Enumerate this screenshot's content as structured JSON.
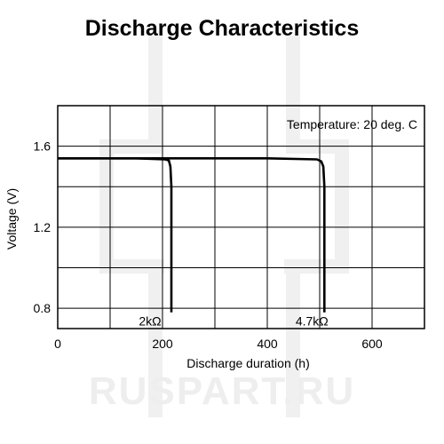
{
  "watermark": "RUSPART.RU",
  "chart_data": {
    "type": "line",
    "title": "Discharge Characteristics",
    "xlabel": "Discharge duration (h)",
    "ylabel": "Voltage (V)",
    "xlim": [
      0,
      700
    ],
    "ylim": [
      0.7,
      1.8
    ],
    "xticks": [
      0,
      200,
      400,
      600
    ],
    "xtick_labels": [
      "0",
      "200",
      "400",
      "600"
    ],
    "yticks": [
      0.8,
      1.2,
      1.6
    ],
    "ytick_labels": [
      "0.8",
      "1.2",
      "1.6"
    ],
    "grid": true,
    "annotation": "Temperature: 20 deg. C",
    "series": [
      {
        "name": "2kΩ",
        "x": [
          0,
          150,
          205,
          212,
          215,
          217,
          217
        ],
        "y": [
          1.54,
          1.54,
          1.535,
          1.53,
          1.5,
          1.4,
          0.78
        ]
      },
      {
        "name": "4.7kΩ",
        "x": [
          0,
          200,
          400,
          495,
          503,
          507,
          509,
          509
        ],
        "y": [
          1.54,
          1.54,
          1.54,
          1.535,
          1.525,
          1.5,
          1.4,
          0.78
        ]
      }
    ],
    "series_labels": [
      "2kΩ",
      "4.7kΩ"
    ]
  }
}
